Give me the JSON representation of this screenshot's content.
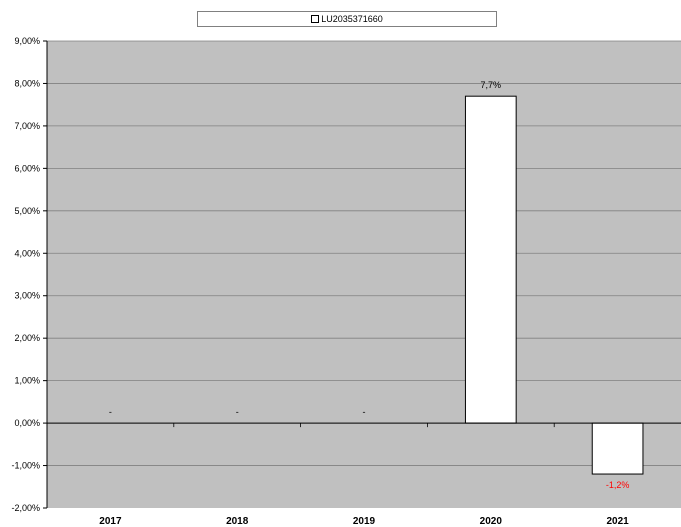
{
  "chart_data": {
    "type": "bar",
    "categories": [
      "2017",
      "2018",
      "2019",
      "2020",
      "2021"
    ],
    "series": [
      {
        "name": "LU2035371660",
        "values": [
          null,
          null,
          null,
          7.7,
          -1.2
        ],
        "data_labels": [
          "-",
          "-",
          "-",
          "7,7%",
          "-1,2%"
        ]
      }
    ],
    "ylim": [
      -2,
      9
    ],
    "yticks": [
      -2,
      -1,
      0,
      1,
      2,
      3,
      4,
      5,
      6,
      7,
      8,
      9
    ],
    "ytick_labels": [
      "-2,00%",
      "-1,00%",
      "0,00%",
      "1,00%",
      "2,00%",
      "3,00%",
      "4,00%",
      "5,00%",
      "6,00%",
      "7,00%",
      "8,00%",
      "9,00%"
    ],
    "title": "",
    "xlabel": "",
    "ylabel": "",
    "legend_position": "top",
    "grid": true,
    "colors": {
      "plot_background": "#c0c0c0",
      "bar_fill": "#ffffff",
      "bar_stroke": "#000000",
      "gridline": "#808080",
      "negative_label": "#ff0000",
      "label": "#000000"
    }
  }
}
